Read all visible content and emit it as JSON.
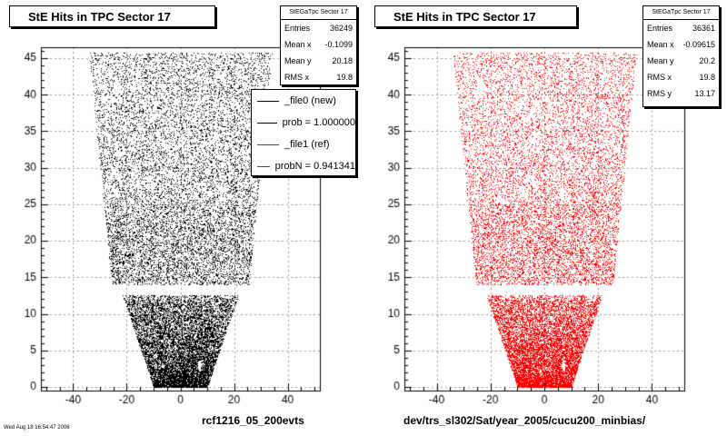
{
  "footer_text": "Wed Aug 18 16:54:47 2006",
  "colors": {
    "new": "#000000",
    "ref": "#ff0000"
  },
  "legend": {
    "entries": [
      {
        "label": "_file0 (new)",
        "color": "#000000"
      },
      {
        "label": "prob = 1.000000",
        "color": "#000000"
      },
      {
        "label": "_file1 (ref)",
        "color": "#ff0000"
      },
      {
        "label": "probN = 0.941341",
        "color": "#ff0000"
      }
    ]
  },
  "chart_data": [
    {
      "type": "scatter",
      "title": "StE Hits in TPC Sector 17",
      "xlabel": "rcf1216_05_200evts",
      "ylabel": "",
      "color": "#000000",
      "xlim": [
        -52,
        52
      ],
      "ylim": [
        -0.5,
        46.5
      ],
      "x_ticks": [
        -40,
        -20,
        0,
        20,
        40
      ],
      "y_ticks": [
        0,
        5,
        10,
        15,
        20,
        25,
        30,
        35,
        40,
        45
      ],
      "grid": true,
      "stats": {
        "name": "StEGaTpc Sector 17",
        "rows": [
          {
            "label": "Entries",
            "value": "36249"
          },
          {
            "label": "Mean x",
            "value": "-0.1099"
          },
          {
            "label": "Mean y",
            "value": "20.18"
          },
          {
            "label": "RMS x",
            "value": "19.8"
          }
        ]
      }
    },
    {
      "type": "scatter",
      "title": "StE Hits in TPC Sector 17",
      "xlabel": "dev/trs_sl302/Sat/year_2005/cucu200_minbias/",
      "ylabel": "",
      "color": "#ff0000",
      "xlim": [
        -52,
        52
      ],
      "ylim": [
        -0.5,
        46.5
      ],
      "x_ticks": [
        -40,
        -20,
        0,
        20,
        40
      ],
      "y_ticks": [
        0,
        5,
        10,
        15,
        20,
        25,
        30,
        35,
        40,
        45
      ],
      "grid": true,
      "stats": {
        "name": "StEGaTpc Sector 17",
        "rows": [
          {
            "label": "Entries",
            "value": "36361"
          },
          {
            "label": "Mean x",
            "value": "-0.09615"
          },
          {
            "label": "Mean y",
            "value": "20.2"
          },
          {
            "label": "RMS x",
            "value": "19.8"
          },
          {
            "label": "RMS y",
            "value": "13.17"
          }
        ]
      }
    }
  ]
}
